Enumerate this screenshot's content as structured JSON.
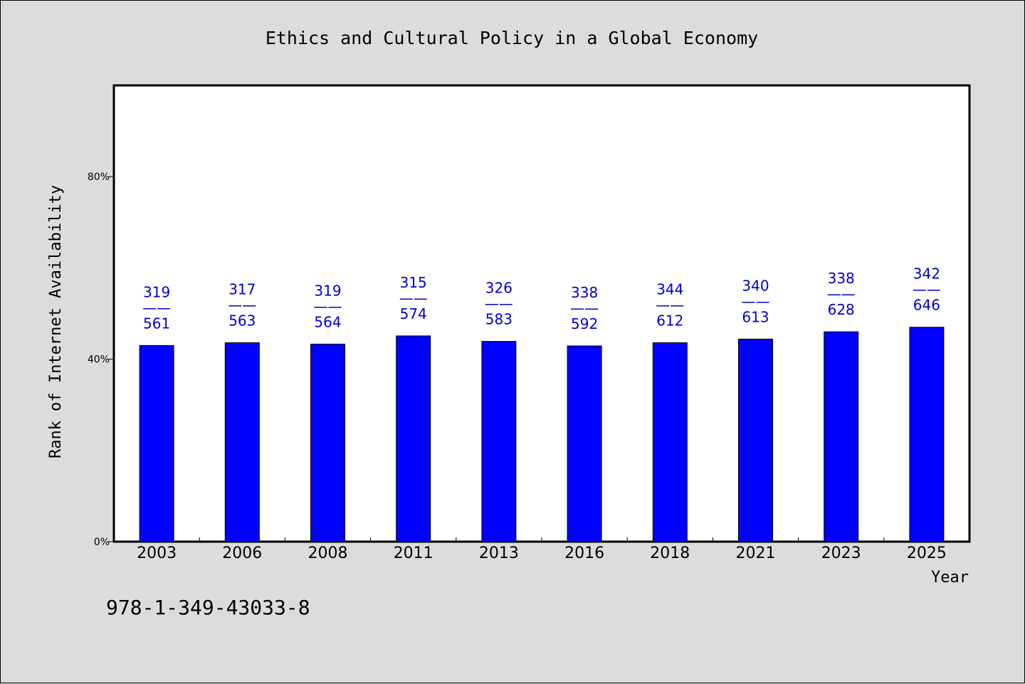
{
  "chart_data": {
    "type": "bar",
    "title": "Ethics and Cultural Policy in a Global Economy",
    "xlabel": "Year",
    "ylabel": "Rank of Internet Availability",
    "categories": [
      "2003",
      "2006",
      "2008",
      "2011",
      "2013",
      "2016",
      "2018",
      "2021",
      "2023",
      "2025"
    ],
    "values": [
      43.0,
      43.6,
      43.3,
      45.1,
      43.9,
      42.9,
      43.6,
      44.4,
      46.0,
      47.0
    ],
    "ylim": [
      0,
      100
    ],
    "yticks": [
      {
        "value": 0,
        "label": "0%"
      },
      {
        "value": 40,
        "label": "40%"
      },
      {
        "value": 80,
        "label": "80%"
      }
    ],
    "data_labels": [
      {
        "top": "319",
        "sep": "——",
        "bottom": "561"
      },
      {
        "top": "317",
        "sep": "——",
        "bottom": "563"
      },
      {
        "top": "319",
        "sep": "——",
        "bottom": "564"
      },
      {
        "top": "315",
        "sep": "——",
        "bottom": "574"
      },
      {
        "top": "326",
        "sep": "——",
        "bottom": "583"
      },
      {
        "top": "338",
        "sep": "——",
        "bottom": "592"
      },
      {
        "top": "344",
        "sep": "——",
        "bottom": "612"
      },
      {
        "top": "340",
        "sep": "——",
        "bottom": "613"
      },
      {
        "top": "338",
        "sep": "——",
        "bottom": "628"
      },
      {
        "top": "342",
        "sep": "——",
        "bottom": "646"
      }
    ],
    "grid": false,
    "colors": {
      "bar": "#0000ff",
      "label": "#0000cc",
      "background": "#dcdcdc",
      "plot_background": "#ffffff"
    }
  },
  "footer": {
    "isbn": "978-1-349-43033-8"
  }
}
